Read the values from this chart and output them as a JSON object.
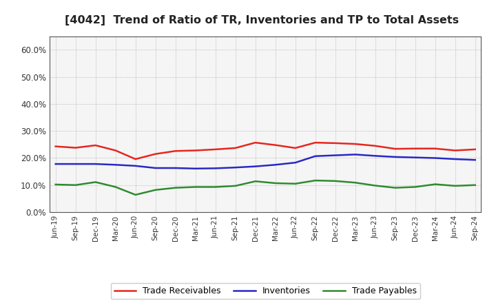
{
  "title": "[4042]  Trend of Ratio of TR, Inventories and TP to Total Assets",
  "labels": [
    "Jun-19",
    "Sep-19",
    "Dec-19",
    "Mar-20",
    "Jun-20",
    "Sep-20",
    "Dec-20",
    "Mar-21",
    "Jun-21",
    "Sep-21",
    "Dec-21",
    "Mar-22",
    "Jun-22",
    "Sep-22",
    "Dec-22",
    "Mar-23",
    "Jun-23",
    "Sep-23",
    "Dec-23",
    "Mar-24",
    "Jun-24",
    "Sep-24"
  ],
  "trade_receivables": [
    0.243,
    0.238,
    0.247,
    0.228,
    0.196,
    0.215,
    0.226,
    0.228,
    0.232,
    0.237,
    0.257,
    0.248,
    0.237,
    0.257,
    0.255,
    0.252,
    0.245,
    0.234,
    0.235,
    0.235,
    0.228,
    0.232
  ],
  "inventories": [
    0.178,
    0.178,
    0.178,
    0.175,
    0.171,
    0.163,
    0.163,
    0.161,
    0.162,
    0.165,
    0.169,
    0.175,
    0.183,
    0.207,
    0.21,
    0.213,
    0.208,
    0.204,
    0.202,
    0.2,
    0.196,
    0.193
  ],
  "trade_payables": [
    0.102,
    0.1,
    0.111,
    0.093,
    0.064,
    0.082,
    0.09,
    0.093,
    0.093,
    0.097,
    0.114,
    0.107,
    0.105,
    0.117,
    0.115,
    0.109,
    0.098,
    0.09,
    0.093,
    0.103,
    0.097,
    0.1
  ],
  "tr_color": "#e8251e",
  "inv_color": "#2828c8",
  "tp_color": "#2e8b2e",
  "ylim": [
    0.0,
    0.65
  ],
  "yticks": [
    0.0,
    0.1,
    0.2,
    0.3,
    0.4,
    0.5,
    0.6
  ],
  "bg_color": "#ffffff",
  "plot_bg_color": "#f5f5f5",
  "grid_color": "#888888",
  "legend_labels": [
    "Trade Receivables",
    "Inventories",
    "Trade Payables"
  ]
}
